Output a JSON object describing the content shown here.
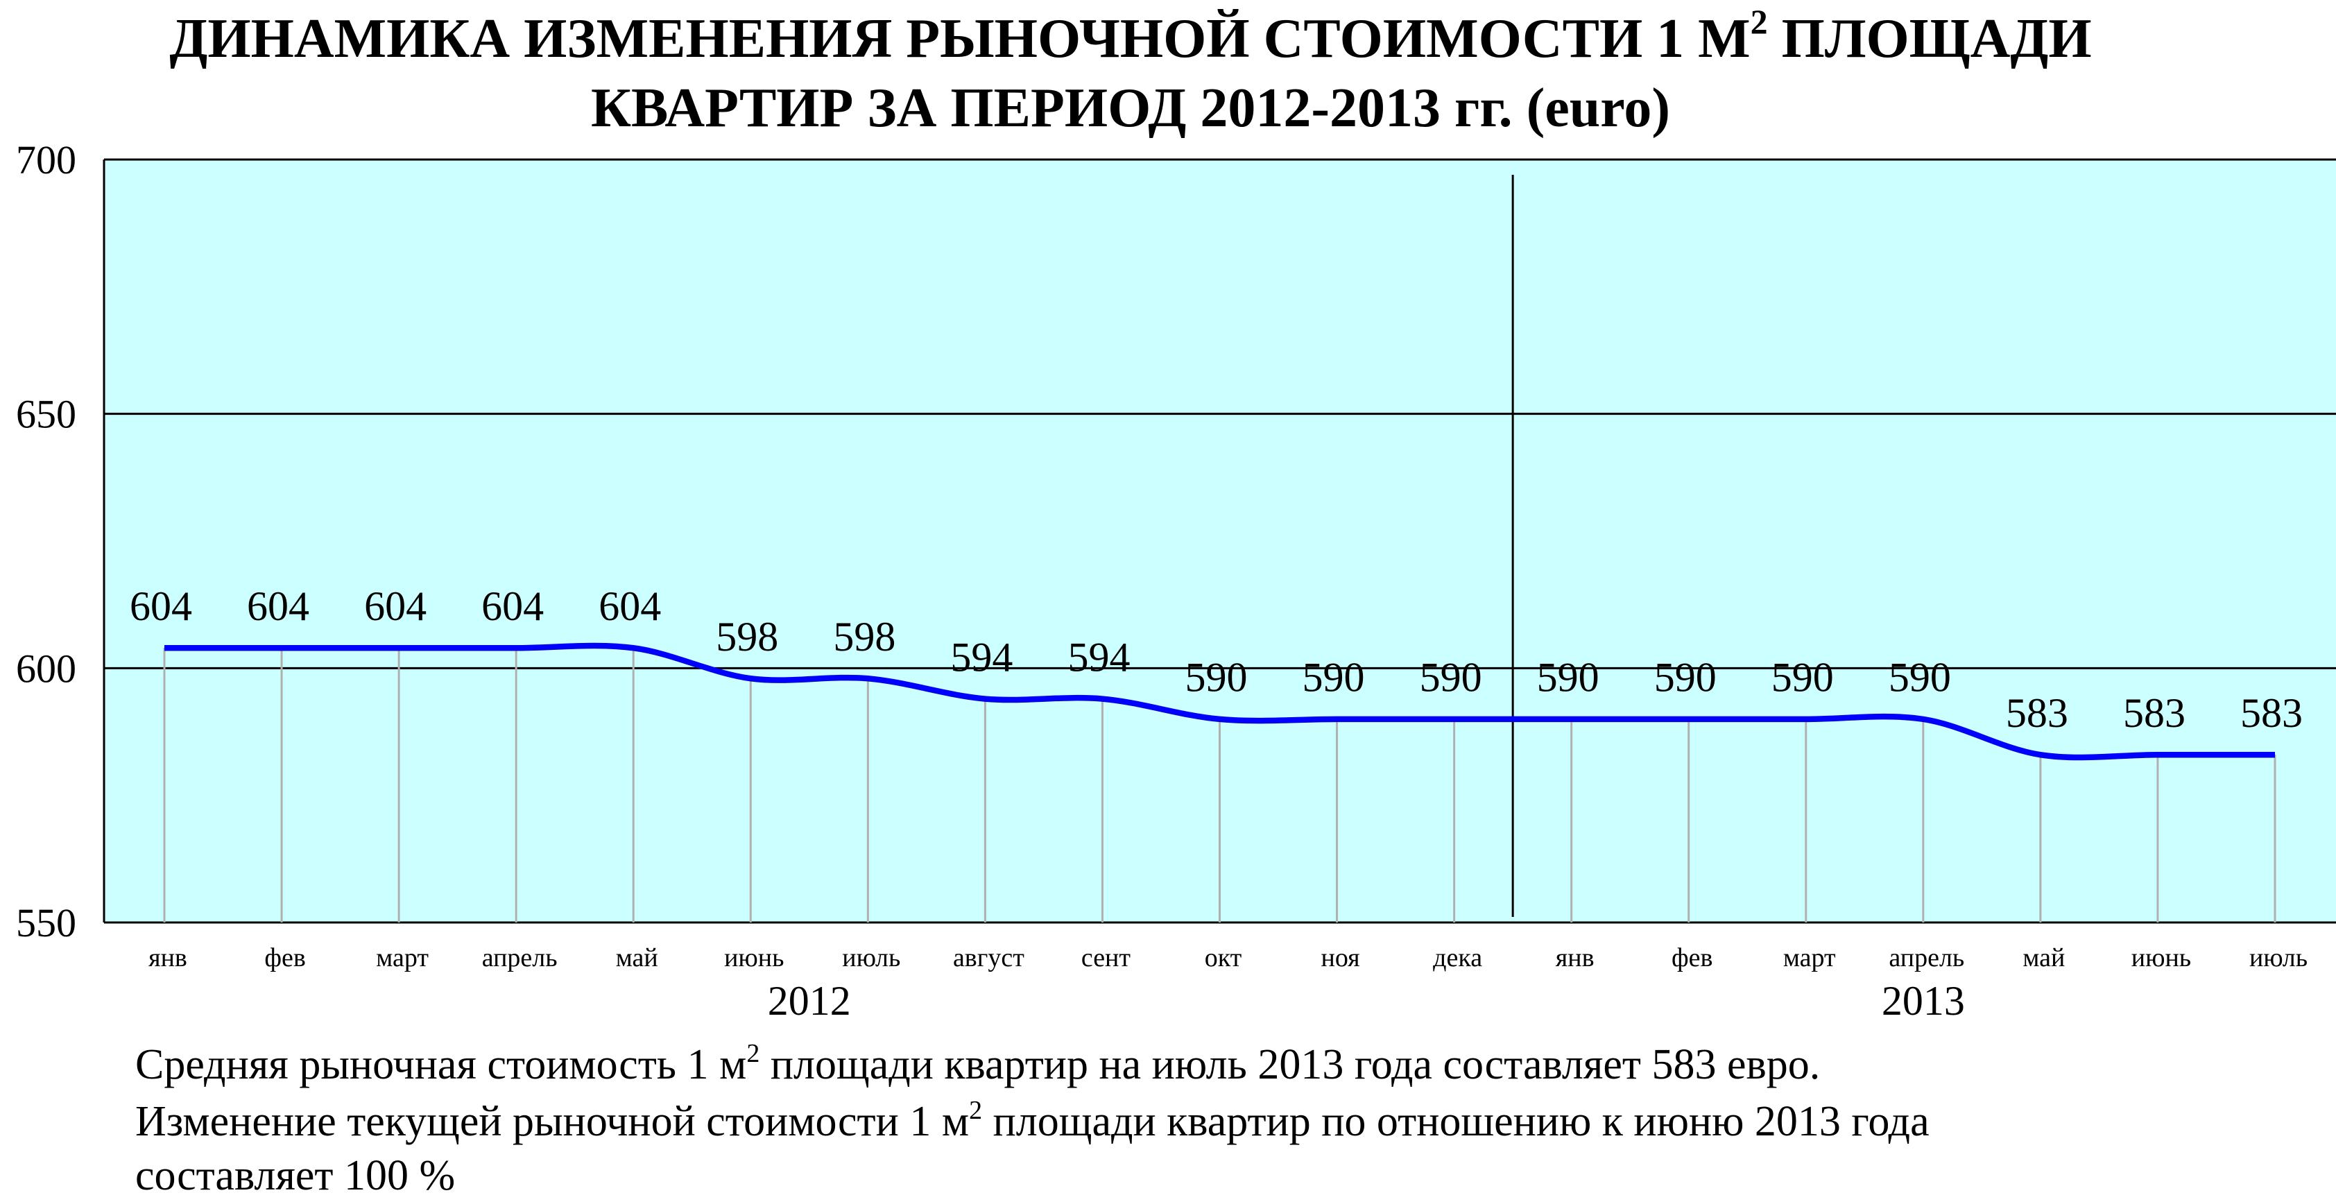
{
  "title": {
    "line1_part1": "ДИНАМИКА ИЗМЕНЕНИЯ РЫНОЧНОЙ СТОИМОСТИ 1 М",
    "line1_sup": "2",
    "line1_part2": " ПЛОЩАДИ",
    "line2": "КВАРТИР ЗА ПЕРИОД 2012-2013 гг. (euro)"
  },
  "chart_data": {
    "type": "line",
    "title": "ДИНАМИКА ИЗМЕНЕНИЯ РЫНОЧНОЙ СТОИМОСТИ 1 М2 ПЛОЩАДИ КВАРТИР ЗА ПЕРИОД 2012-2013 гг. (euro)",
    "categories": [
      "янв",
      "фев",
      "март",
      "апрель",
      "май",
      "июнь",
      "июль",
      "август",
      "сент",
      "окт",
      "ноя",
      "дека",
      "янв",
      "фев",
      "март",
      "апрель",
      "май",
      "июнь",
      "июль"
    ],
    "groups": [
      {
        "label": "2012",
        "count": 12
      },
      {
        "label": "2013",
        "count": 7
      }
    ],
    "series": [
      {
        "values": [
          604,
          604,
          604,
          604,
          604,
          598,
          598,
          594,
          594,
          590,
          590,
          590,
          590,
          590,
          590,
          590,
          583,
          583,
          583
        ],
        "color": "#0000ff"
      }
    ],
    "data_labels": [
      "604",
      "604",
      "604",
      "604",
      "604",
      "598",
      "598",
      "594",
      "594",
      "590",
      "590",
      "590",
      "590",
      "590",
      "590",
      "590",
      "583",
      "583",
      "583"
    ],
    "ylim": [
      550,
      700
    ],
    "yticks": [
      550,
      600,
      650,
      700
    ],
    "ytick_labels": [
      "550",
      "600",
      "650",
      "700"
    ],
    "grid": true,
    "year_divider_after_index": 11,
    "colors": {
      "plot_background": "#ccffff",
      "line": "#0000ff",
      "drop_lines": "#b0b0b0",
      "gridlines": "#000000"
    }
  },
  "notes": {
    "line1_part1": "Средняя рыночная стоимость 1 м",
    "line1_sup": "2",
    "line1_part2": " площади квартир на июль 2013 года составляет 583 евро.",
    "line2_part1": "Изменение текущей рыночной стоимости 1 м",
    "line2_sup": "2",
    "line2_part2": " площади квартир по отношению к июню 2013 года",
    "line3": "составляет  100 %"
  }
}
